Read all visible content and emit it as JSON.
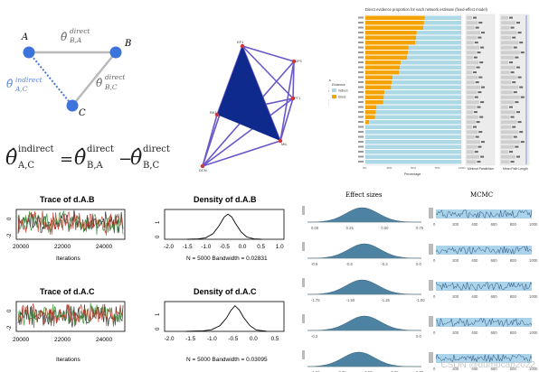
{
  "triangle": {
    "node_a": "A",
    "node_b": "B",
    "node_c": "C",
    "label_direct_ba_sup": "direct",
    "label_direct_ba_sub": "B,A",
    "label_indirect_ac_sup": "indirect",
    "label_indirect_ac_sub": "A,C",
    "label_direct_bc_sup": "direct",
    "label_direct_bc_sub": "B,C",
    "eq_lhs_sup": "indirect",
    "eq_lhs_sub": "A,C",
    "eq_t1_sup": "direct",
    "eq_t1_sub": "B,A",
    "eq_t2_sup": "direct",
    "eq_t2_sub": "B,C",
    "theta": "θ̂",
    "eq_sign": "=",
    "minus_sign": "−"
  },
  "network": {
    "nodes": [
      "EF1",
      "GP1",
      "PT1",
      "RK1",
      "MIL",
      "DCN"
    ]
  },
  "barchart": {
    "title": "Direct evidence proportion for each network estimate (fixed-effect model)",
    "ylabel": "Network Estimate",
    "xlabel": "Percentage",
    "panel2_label": "Minimal Parallelism",
    "panel3_label": "Mean Path Length",
    "legend_title": "Evidence",
    "legend_items": [
      "Indirect",
      "Direct"
    ],
    "colors": {
      "indirect": "#add8e6",
      "direct": "#f5a300"
    },
    "x_ticks": [
      "0%",
      "25%",
      "50%",
      "75%",
      "100%"
    ]
  },
  "chart_data": [
    {
      "type": "line",
      "title": "Trace of d.A.B",
      "xlabel": "Iterations",
      "xticks": [
        20000,
        22000,
        24000
      ],
      "yticks": [
        -2.0,
        0.0
      ],
      "ylim": [
        -2.6,
        0.8
      ],
      "series": [
        {
          "values": [
            -0.45,
            -0.2,
            -0.55,
            -0.3,
            -0.6,
            -0.15,
            -0.4,
            -0.35,
            -0.7,
            -0.25,
            -0.5,
            -0.1,
            -0.45,
            -0.6,
            -0.3
          ]
        }
      ]
    },
    {
      "type": "line",
      "title": "Density of d.A.B",
      "caption": "N = 5000   Bandwidth = 0.02831",
      "xticks": [
        -2.0,
        -1.5,
        -1.0,
        -0.5,
        0.0,
        0.5,
        1.0
      ],
      "yticks": [
        0.0,
        1.0
      ],
      "xlim": [
        -2.1,
        1.1
      ],
      "ylim": [
        0,
        1.6
      ],
      "x": [
        -1.5,
        -1.2,
        -1.0,
        -0.8,
        -0.65,
        -0.5,
        -0.4,
        -0.3,
        -0.2,
        -0.05,
        0.1,
        0.3,
        0.5
      ],
      "values": [
        0.0,
        0.02,
        0.08,
        0.3,
        0.7,
        1.2,
        1.35,
        1.2,
        0.85,
        0.4,
        0.12,
        0.02,
        0.0
      ]
    },
    {
      "type": "line",
      "title": "Trace of d.A.C",
      "xlabel": "Iterations",
      "xticks": [
        20000,
        22000,
        24000
      ],
      "yticks": [
        -2.0,
        0.0
      ],
      "ylim": [
        -2.6,
        0.8
      ],
      "series": [
        {
          "values": [
            -0.5,
            -0.25,
            -0.6,
            -0.35,
            -0.55,
            -0.2,
            -0.45,
            -0.3,
            -0.65,
            -0.4,
            -0.5,
            -0.15,
            -0.35,
            -0.55,
            -0.4
          ]
        }
      ]
    },
    {
      "type": "line",
      "title": "Density of d.A.C",
      "caption": "N = 5000   Bandwidth = 0.03095",
      "xticks": [
        -2.0,
        -1.5,
        -1.0,
        -0.5,
        0.0,
        0.5
      ],
      "yticks": [
        0.0,
        1.0
      ],
      "xlim": [
        -2.1,
        0.7
      ],
      "ylim": [
        0,
        1.8
      ],
      "x": [
        -1.6,
        -1.2,
        -1.0,
        -0.8,
        -0.65,
        -0.55,
        -0.45,
        -0.35,
        -0.25,
        -0.1,
        0.05,
        0.3
      ],
      "values": [
        0.0,
        0.03,
        0.1,
        0.35,
        0.8,
        1.25,
        1.55,
        1.3,
        0.85,
        0.35,
        0.08,
        0.0
      ]
    },
    {
      "type": "area",
      "title": "Effect sizes",
      "rows": [
        {
          "xticks": [
            "0.00",
            "0.25",
            "0.50",
            "0.75"
          ],
          "center": 0.48
        },
        {
          "xticks": [
            "-0.9",
            "-0.6",
            "-0.3",
            "0.0"
          ],
          "center": 0.5
        },
        {
          "xticks": [
            "-1.75",
            "-1.50",
            "-1.25",
            "-1.00"
          ],
          "center": 0.48
        },
        {
          "xticks": [
            "-0.3",
            "0.0"
          ],
          "center": 0.5
        },
        {
          "xticks": [
            "-1.00",
            "-0.75",
            "-0.50",
            "-0.25",
            "0.00"
          ],
          "center": 0.45
        }
      ]
    },
    {
      "type": "line",
      "title": "MCMC",
      "xticks": [
        "0",
        "200",
        "400",
        "600",
        "800",
        "1000"
      ],
      "rows": 5
    }
  ],
  "watermark": "CSDN @dumbcap2022"
}
